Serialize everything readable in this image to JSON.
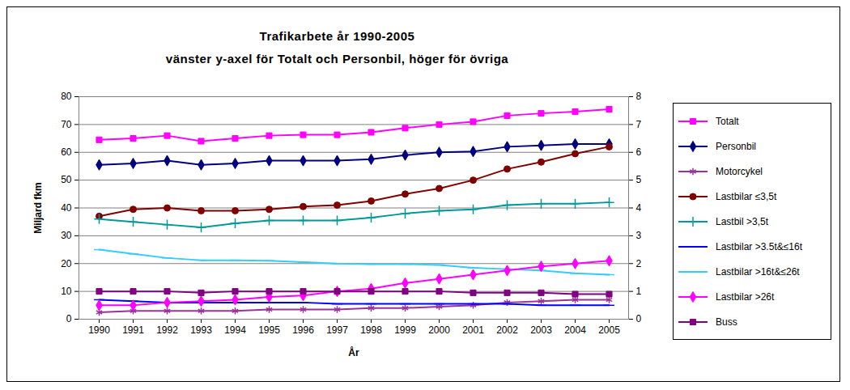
{
  "chart_data": {
    "type": "line",
    "title": "Trafikarbete år 1990-2005",
    "subtitle": "vänster y-axel för Totalt och Personbil, höger för övriga",
    "x_label": "År",
    "y_label": "Miljard fkm",
    "categories": [
      "1990",
      "1991",
      "1992",
      "1993",
      "1994",
      "1995",
      "1996",
      "1997",
      "1998",
      "1999",
      "2000",
      "2001",
      "2002",
      "2003",
      "2004",
      "2005"
    ],
    "ylim": [
      0,
      80
    ],
    "yticks": [
      0,
      10,
      20,
      30,
      40,
      50,
      60,
      70,
      80
    ],
    "y2lim": [
      0,
      8
    ],
    "y2ticks": [
      0,
      1,
      2,
      3,
      4,
      5,
      6,
      7,
      8
    ],
    "grid": true,
    "legend": "right",
    "series": [
      {
        "name": "Totalt",
        "color": "#ff00ff",
        "marker": "square",
        "values": [
          64.5,
          65,
          66,
          64,
          65,
          66,
          66.3,
          66.3,
          67.2,
          68.7,
          70,
          71,
          73.2,
          74,
          74.6,
          75.5
        ]
      },
      {
        "name": "Personbil",
        "color": "#000080",
        "marker": "diamond",
        "values": [
          55.5,
          56,
          57,
          55.5,
          56,
          57,
          57,
          57,
          57.5,
          59,
          60,
          60.3,
          62,
          62.5,
          63,
          63
        ]
      },
      {
        "name": "Motorcykel",
        "color": "#993399",
        "marker": "asterisk",
        "axis": "y2",
        "values": [
          0.25,
          0.3,
          0.3,
          0.3,
          0.3,
          0.35,
          0.35,
          0.35,
          0.4,
          0.4,
          0.45,
          0.5,
          0.6,
          0.65,
          0.7,
          0.7
        ]
      },
      {
        "name": "Lastbilar ≤3,5t",
        "color": "#800000",
        "marker": "circle",
        "axis": "y2",
        "values": [
          3.7,
          3.95,
          4.0,
          3.9,
          3.9,
          3.95,
          4.05,
          4.1,
          4.25,
          4.5,
          4.7,
          5.0,
          5.4,
          5.65,
          5.95,
          6.2
        ]
      },
      {
        "name": "Lastbil >3,5t",
        "color": "#009999",
        "marker": "plus",
        "axis": "y2",
        "values": [
          3.6,
          3.5,
          3.4,
          3.3,
          3.45,
          3.55,
          3.55,
          3.55,
          3.65,
          3.8,
          3.9,
          3.95,
          4.1,
          4.15,
          4.15,
          4.2
        ]
      },
      {
        "name": "Lastbilar >3.5t&≤16t",
        "color": "#0000ff",
        "marker": "dash",
        "axis": "y2",
        "values": [
          0.7,
          0.65,
          0.6,
          0.6,
          0.6,
          0.6,
          0.6,
          0.55,
          0.55,
          0.55,
          0.55,
          0.55,
          0.55,
          0.5,
          0.5,
          0.5
        ]
      },
      {
        "name": "Lastbilar >16t&≤26t",
        "color": "#33ccff",
        "marker": "dash",
        "axis": "y2",
        "values": [
          2.5,
          2.35,
          2.2,
          2.12,
          2.12,
          2.1,
          2.05,
          2.0,
          1.98,
          1.98,
          1.95,
          1.85,
          1.8,
          1.75,
          1.65,
          1.6
        ]
      },
      {
        "name": "Lastbilar >26t",
        "color": "#ff00ff",
        "marker": "diamond",
        "axis": "y2",
        "values": [
          0.5,
          0.5,
          0.6,
          0.65,
          0.7,
          0.8,
          0.85,
          1.0,
          1.1,
          1.3,
          1.45,
          1.6,
          1.75,
          1.9,
          2.0,
          2.1
        ]
      },
      {
        "name": "Buss",
        "color": "#800080",
        "marker": "square",
        "axis": "y2",
        "values": [
          1.0,
          1.0,
          1.0,
          0.95,
          1.0,
          1.0,
          1.0,
          1.0,
          1.0,
          1.0,
          1.0,
          0.95,
          0.95,
          0.95,
          0.9,
          0.9
        ]
      }
    ]
  }
}
